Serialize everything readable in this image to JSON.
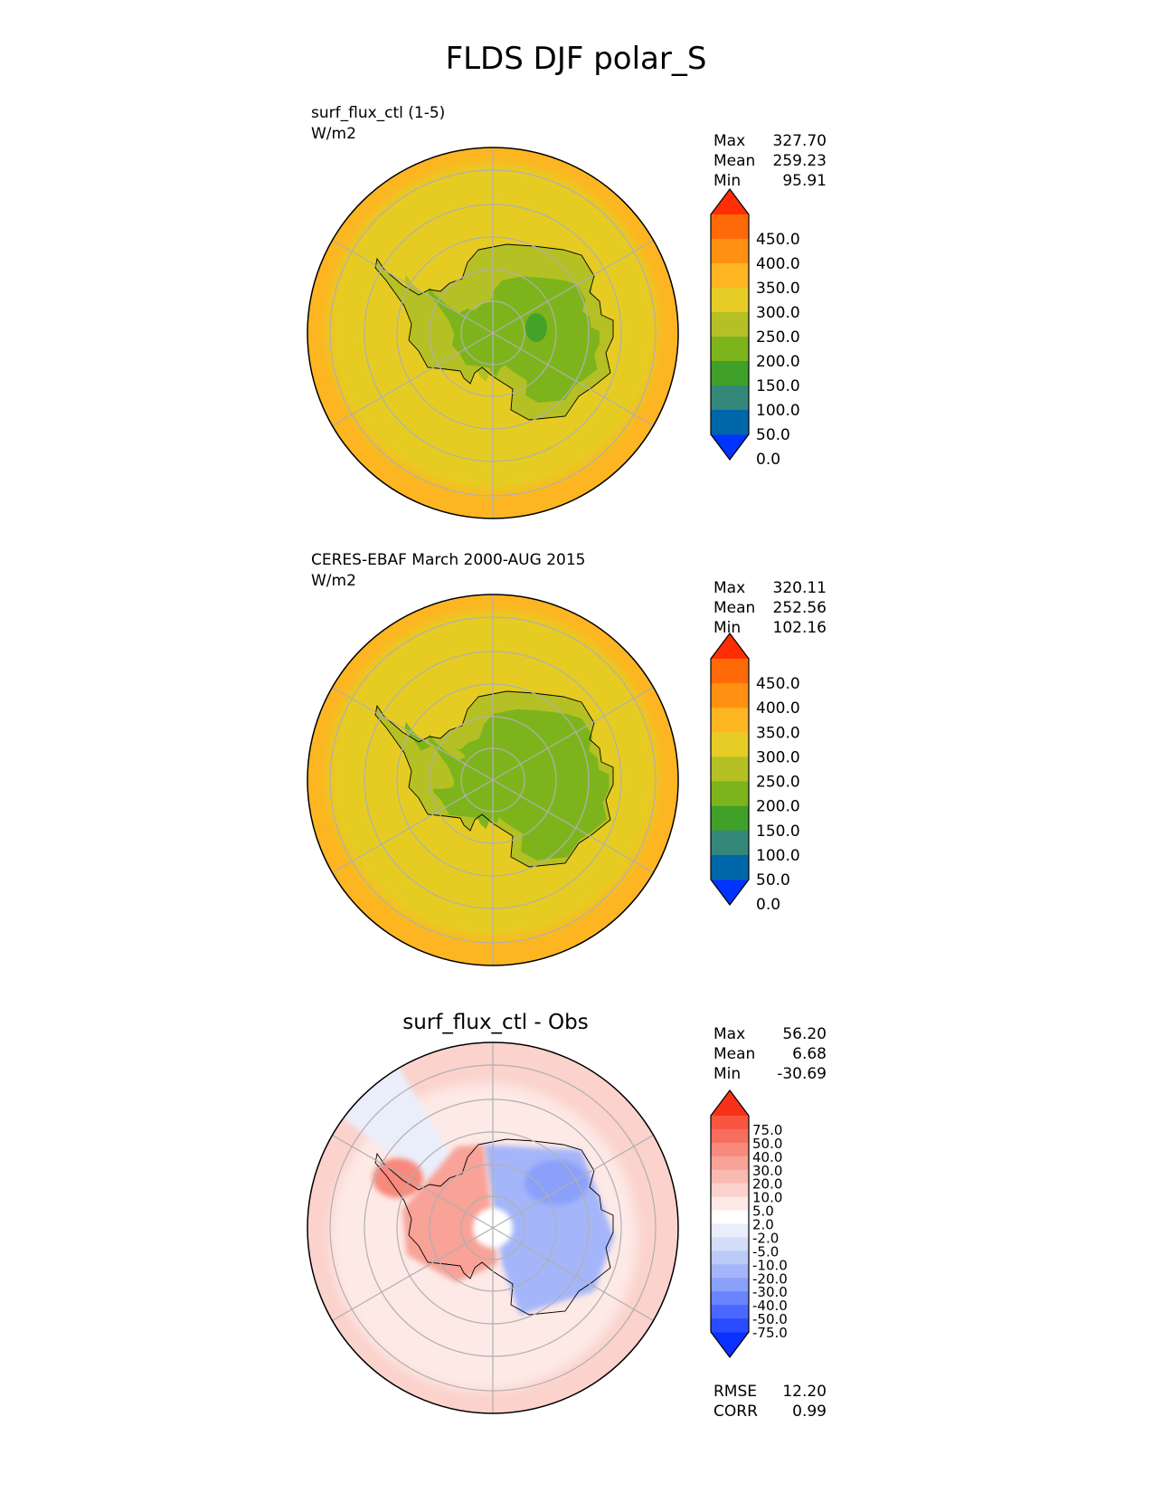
{
  "figure_title": "FLDS DJF polar_S",
  "colors": {
    "abs_levels": [
      "#0033ff",
      "#0066aa",
      "#33887a",
      "#3fa02a",
      "#7db41c",
      "#b4c024",
      "#e6cc24",
      "#fdb522",
      "#ff9010",
      "#ff6a08",
      "#ff2e04"
    ],
    "diff_levels": [
      "#0b30ff",
      "#2a4cff",
      "#4a68ff",
      "#6a84fd",
      "#8aa0fa",
      "#a4b5f9",
      "#bccaf8",
      "#d4ddf8",
      "#eaeefb",
      "#ffffff",
      "#fde9e6",
      "#fbd2cc",
      "#f9bab2",
      "#f8a298",
      "#f8897c",
      "#f86e5e",
      "#f85640",
      "#f83218"
    ],
    "coastline": "#000000",
    "gridline": "#b0b0b0"
  },
  "chart_data": [
    {
      "type": "heatmap",
      "projection": "south polar stereographic",
      "title": "surf_flux_ctl (1-5)",
      "units": "W/m2",
      "stats": [
        {
          "label": "Max",
          "value": "327.70"
        },
        {
          "label": "Mean",
          "value": "259.23"
        },
        {
          "label": "Min",
          "value": "95.91"
        }
      ],
      "colorbar": {
        "levels": [
          0,
          50,
          100,
          150,
          200,
          250,
          300,
          350,
          400,
          450
        ],
        "tick_labels": [
          "450.0",
          "400.0",
          "350.0",
          "300.0",
          "250.0",
          "200.0",
          "150.0",
          "100.0",
          "50.0",
          "0.0"
        ],
        "extend": "both"
      },
      "field": {
        "ocean_north": 320,
        "ocean_south": 310,
        "ocean_mid": 280,
        "ocean_near": 265,
        "coast_ring": 240,
        "plateau_ring": 200,
        "plateau": 170,
        "peninsula": 225,
        "ross_shelf": 210,
        "interior_minimum": 110
      }
    },
    {
      "type": "heatmap",
      "projection": "south polar stereographic",
      "title": "CERES-EBAF March 2000-AUG 2015",
      "units": "W/m2",
      "stats": [
        {
          "label": "Max",
          "value": "320.11"
        },
        {
          "label": "Mean",
          "value": "252.56"
        },
        {
          "label": "Min",
          "value": "102.16"
        }
      ],
      "colorbar": {
        "levels": [
          0,
          50,
          100,
          150,
          200,
          250,
          300,
          350,
          400,
          450
        ],
        "tick_labels": [
          "450.0",
          "400.0",
          "350.0",
          "300.0",
          "250.0",
          "200.0",
          "150.0",
          "100.0",
          "50.0",
          "0.0"
        ],
        "extend": "both"
      },
      "field": {
        "ocean_north": 305,
        "ocean_south": 300,
        "ocean_mid": 275,
        "ocean_near": 270,
        "coast_ring": 225,
        "plateau_ring": 185,
        "plateau": 160,
        "peninsula": 220,
        "ross_shelf": 200,
        "interior_minimum": 150
      }
    },
    {
      "type": "heatmap",
      "projection": "south polar stereographic",
      "title": "surf_flux_ctl - Obs",
      "stats": [
        {
          "label": "Max",
          "value": "56.20"
        },
        {
          "label": "Mean",
          "value": "6.68"
        },
        {
          "label": "Min",
          "value": "-30.69"
        }
      ],
      "colorbar": {
        "levels": [
          -75,
          -50,
          -40,
          -30,
          -20,
          -10,
          -5,
          -2,
          2,
          5,
          10,
          20,
          30,
          40,
          50,
          75
        ],
        "tick_labels": [
          "75.0",
          "50.0",
          "40.0",
          "30.0",
          "20.0",
          "10.0",
          "5.0",
          "2.0",
          "-2.0",
          "-5.0",
          "-10.0",
          "-20.0",
          "-30.0",
          "-40.0",
          "-50.0",
          "-75.0"
        ],
        "extend": "both"
      },
      "field": {
        "ocean_outer": 18,
        "ocean_inner": 6,
        "sector_white": 1,
        "east_antarctica": -12,
        "east_antarctica_core": -22,
        "west_antarctica": 30,
        "peninsula": 42,
        "pole": 3
      },
      "metrics": [
        {
          "label": "RMSE",
          "value": "12.20"
        },
        {
          "label": "CORR",
          "value": "0.99"
        }
      ]
    }
  ]
}
